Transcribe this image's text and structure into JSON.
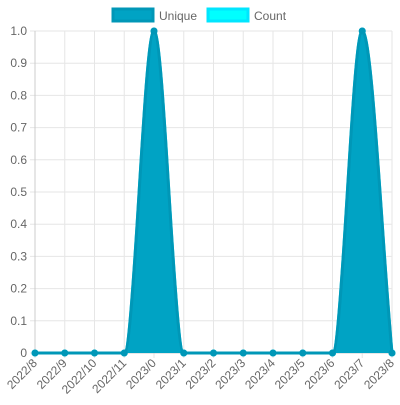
{
  "chart_data": {
    "type": "area",
    "categories": [
      "2022/8",
      "2022/9",
      "2022/10",
      "2022/11",
      "2023/0",
      "2023/1",
      "2023/2",
      "2023/3",
      "2023/4",
      "2023/5",
      "2023/6",
      "2023/7",
      "2023/8"
    ],
    "series": [
      {
        "name": "Unique",
        "values": [
          0,
          0,
          0,
          0,
          1,
          0,
          0,
          0,
          0,
          0,
          0,
          1,
          0
        ],
        "color": "#0097b7",
        "fill": "#00a3c4"
      },
      {
        "name": "Count",
        "values": [
          0,
          0,
          0,
          0,
          1,
          0,
          0,
          0,
          0,
          0,
          0,
          1,
          0
        ],
        "color": "#00e6ff",
        "fill": "#00ffff"
      }
    ],
    "y_ticks": [
      "0",
      "0.1",
      "0.2",
      "0.3",
      "0.4",
      "0.5",
      "0.6",
      "0.7",
      "0.8",
      "0.9",
      "1.0"
    ],
    "ylim": [
      0,
      1
    ],
    "grid": true,
    "legend_position": "top"
  }
}
